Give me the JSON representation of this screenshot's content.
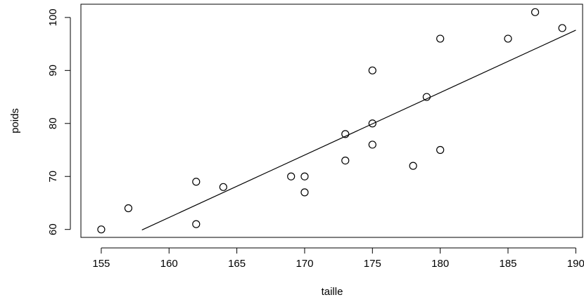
{
  "chart_data": {
    "type": "scatter",
    "title": "",
    "xlabel": "taille",
    "ylabel": "poids",
    "xlim": [
      153.5,
      190.5
    ],
    "ylim": [
      58.5,
      102.5
    ],
    "x_ticks": [
      155,
      160,
      165,
      170,
      175,
      180,
      185,
      190
    ],
    "y_ticks": [
      60,
      70,
      80,
      90,
      100
    ],
    "grid": false,
    "marker": "open-circle",
    "points": [
      {
        "x": 155,
        "y": 60
      },
      {
        "x": 157,
        "y": 64
      },
      {
        "x": 162,
        "y": 69
      },
      {
        "x": 162,
        "y": 61
      },
      {
        "x": 164,
        "y": 68
      },
      {
        "x": 169,
        "y": 70
      },
      {
        "x": 170,
        "y": 70
      },
      {
        "x": 170,
        "y": 67
      },
      {
        "x": 173,
        "y": 78
      },
      {
        "x": 173,
        "y": 73
      },
      {
        "x": 175,
        "y": 90
      },
      {
        "x": 175,
        "y": 80
      },
      {
        "x": 175,
        "y": 76
      },
      {
        "x": 178,
        "y": 72
      },
      {
        "x": 179,
        "y": 85
      },
      {
        "x": 180,
        "y": 96
      },
      {
        "x": 180,
        "y": 75
      },
      {
        "x": 185,
        "y": 96
      },
      {
        "x": 187,
        "y": 101
      },
      {
        "x": 189,
        "y": 98
      }
    ],
    "regression_line": {
      "x": [
        158,
        190
      ],
      "y": [
        59.9,
        97.6
      ]
    }
  }
}
